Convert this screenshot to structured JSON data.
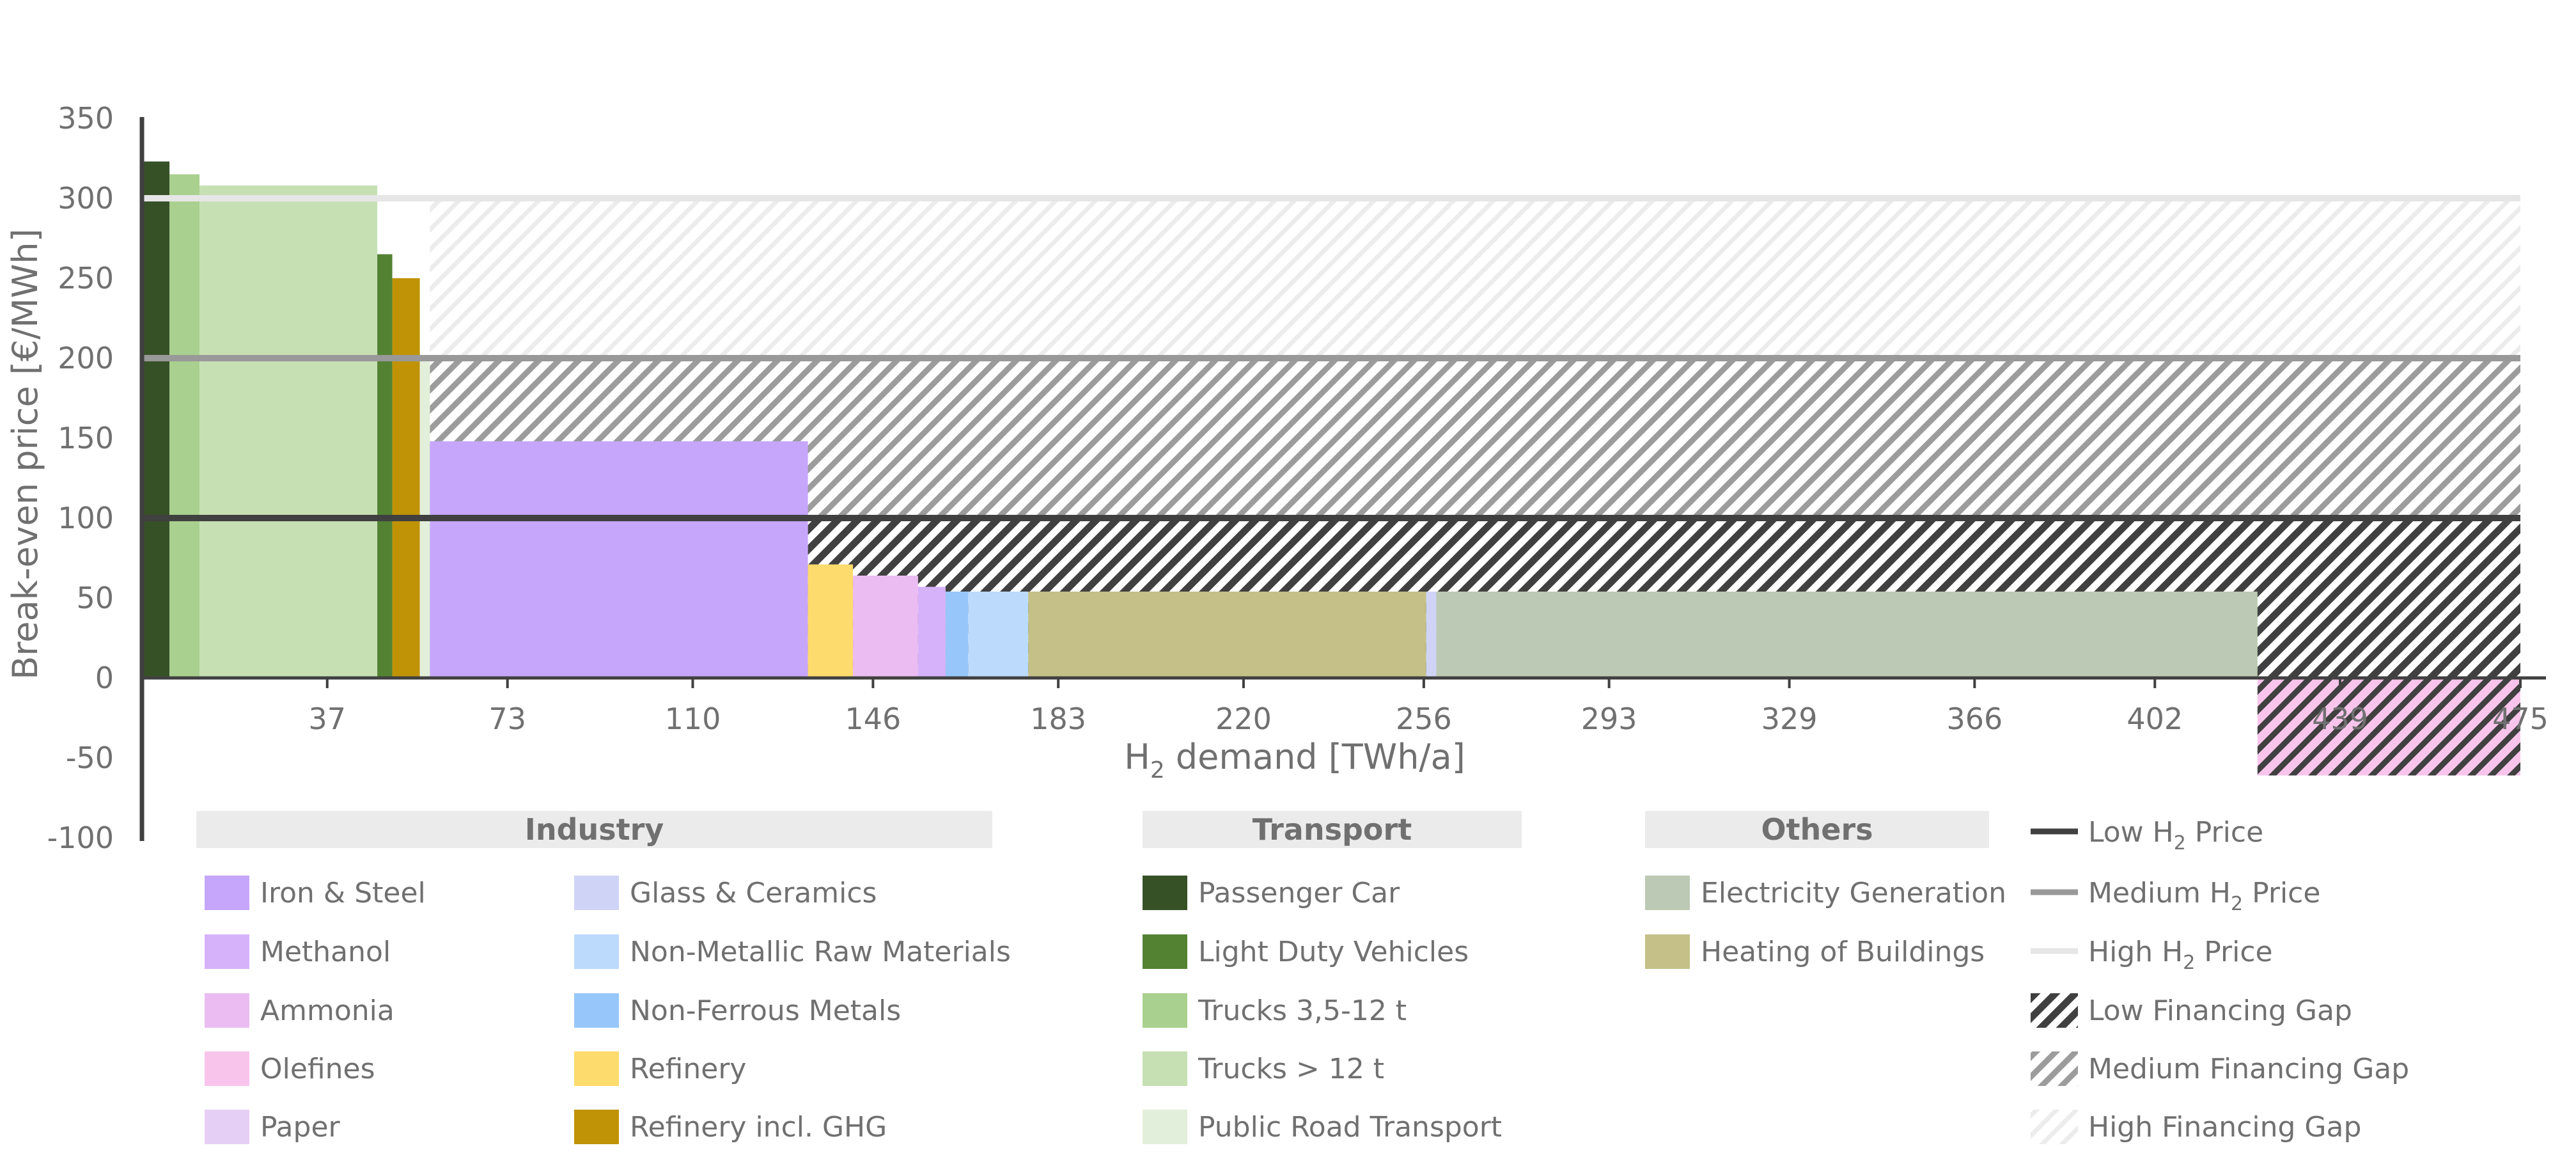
{
  "chart_data": {
    "type": "bar",
    "title": "",
    "xlabel": {
      "main": "H",
      "sub": "2",
      "rest": " demand [TWh/a]"
    },
    "ylabel": "Break-even price [€/MWh]",
    "xlim": [
      0,
      475
    ],
    "ylim": [
      -100,
      350
    ],
    "x_ticks": [
      "37",
      "73",
      "110",
      "146",
      "183",
      "220",
      "256",
      "293",
      "329",
      "366",
      "402",
      "439",
      "475"
    ],
    "y_ticks": [
      "350",
      "300",
      "250",
      "200",
      "150",
      "100",
      "50",
      "0",
      "-50",
      "-100"
    ],
    "bars": [
      {
        "sector": "Passenger Car",
        "x0": 0,
        "x1": 5.5,
        "value": 323
      },
      {
        "sector": "Trucks 3,5-12 t",
        "x0": 5.5,
        "x1": 11.5,
        "value": 315
      },
      {
        "sector": "Trucks > 12 t",
        "x0": 11.5,
        "x1": 47,
        "value": 308
      },
      {
        "sector": "Light Duty Vehicles",
        "x0": 47,
        "x1": 50,
        "value": 265
      },
      {
        "sector": "Refinery incl. GHG",
        "x0": 50,
        "x1": 55.5,
        "value": 250
      },
      {
        "sector": "Public Road Transport",
        "x0": 55.5,
        "x1": 57.5,
        "value": 200
      },
      {
        "sector": "Iron & Steel",
        "x0": 57.5,
        "x1": 133,
        "value": 148
      },
      {
        "sector": "Refinery",
        "x0": 133,
        "x1": 142,
        "value": 71
      },
      {
        "sector": "Ammonia",
        "x0": 142,
        "x1": 155,
        "value": 64
      },
      {
        "sector": "Methanol",
        "x0": 155,
        "x1": 160.5,
        "value": 57
      },
      {
        "sector": "Non-Ferrous Metals",
        "x0": 160.5,
        "x1": 165,
        "value": 54
      },
      {
        "sector": "Non-Metallic Raw Materials",
        "x0": 165,
        "x1": 177,
        "value": 54
      },
      {
        "sector": "Heating of Buildings",
        "x0": 177,
        "x1": 256.5,
        "value": 54
      },
      {
        "sector": "Glass & Ceramics",
        "x0": 256.5,
        "x1": 258.5,
        "value": 54
      },
      {
        "sector": "Electricity Generation",
        "x0": 258.5,
        "x1": 422.5,
        "value": 54
      },
      {
        "sector": "Olefines",
        "x0": 422.5,
        "x1": 475,
        "value": -61
      }
    ],
    "price_lines": [
      {
        "name": "Low H2 Price",
        "value": 100,
        "color": "#404040"
      },
      {
        "name": "Medium H2 Price",
        "value": 200,
        "color": "#999999"
      },
      {
        "name": "High H2 Price",
        "value": 300,
        "color": "#e6e6e6"
      }
    ],
    "financing_gaps": [
      {
        "name": "Low Financing Gap",
        "pattern": "low"
      },
      {
        "name": "Medium Financing Gap",
        "pattern": "medium"
      },
      {
        "name": "High Financing Gap",
        "pattern": "high"
      }
    ],
    "legend": {
      "placement": "bottom",
      "groups": [
        {
          "heading": "Industry",
          "columns": [
            [
              {
                "label": "Iron & Steel",
                "color": "#c6a6fb"
              },
              {
                "label": "Methanol",
                "color": "#d6b2fb"
              },
              {
                "label": "Ammonia",
                "color": "#ebbcf2"
              },
              {
                "label": "Olefines",
                "color": "#f9c4ec"
              },
              {
                "label": "Paper",
                "color": "#e6cff4"
              }
            ],
            [
              {
                "label": "Glass & Ceramics",
                "color": "#cfd4f7"
              },
              {
                "label": "Non-Metallic Raw Materials",
                "color": "#bcdafb"
              },
              {
                "label": "Non-Ferrous Metals",
                "color": "#97c7fa"
              },
              {
                "label": "Refinery",
                "color": "#fedb6d"
              },
              {
                "label": "Refinery incl. GHG",
                "color": "#c09307"
              }
            ]
          ]
        },
        {
          "heading": "Transport",
          "columns": [
            [
              {
                "label": "Passenger Car",
                "color": "#375127"
              },
              {
                "label": "Light Duty Vehicles",
                "color": "#538233"
              },
              {
                "label": "Trucks 3,5-12 t",
                "color": "#a9d08e"
              },
              {
                "label": "Trucks > 12 t",
                "color": "#c6e0b4"
              },
              {
                "label": "Public Road Transport",
                "color": "#e2efda"
              }
            ]
          ]
        },
        {
          "heading": "Others",
          "columns": [
            [
              {
                "label": "Electricity Generation",
                "color": "#bcc9b4"
              },
              {
                "label": "Heating of Buildings",
                "color": "#c4c087"
              }
            ]
          ]
        }
      ],
      "line_items": [
        {
          "main": "Low H",
          "sub": "2",
          "rest": " Price",
          "color": "#404040"
        },
        {
          "main": "Medium H",
          "sub": "2",
          "rest": " Price",
          "color": "#999999"
        },
        {
          "main": "High H",
          "sub": "2",
          "rest": " Price",
          "color": "#e6e6e6"
        }
      ],
      "gap_items": [
        {
          "label": "Low Financing Gap",
          "pattern": "low"
        },
        {
          "label": "Medium Financing Gap",
          "pattern": "medium"
        },
        {
          "label": "High Financing Gap",
          "pattern": "high"
        }
      ]
    },
    "colors": {
      "axis": "#404040",
      "tick_text": "#707070",
      "group_header_bg": "#ebebeb"
    }
  }
}
